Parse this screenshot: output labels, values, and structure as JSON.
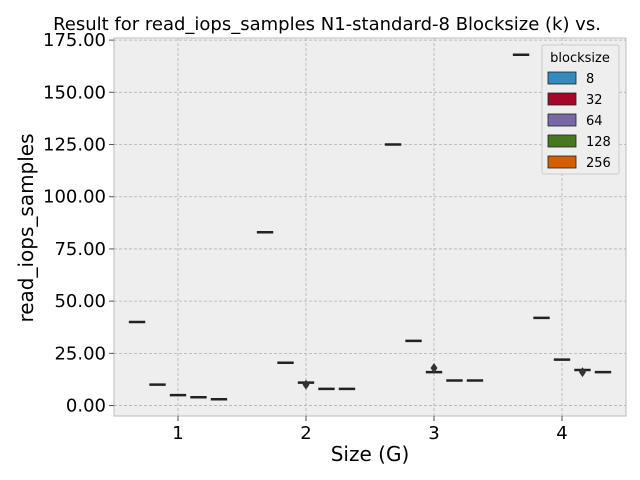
{
  "chart_data": {
    "type": "box",
    "title": "Result for read_iops_samples N1-standard-8 Blocksize (k) vs.",
    "xlabel": "Size (G)",
    "ylabel": "read_iops_samples",
    "categories": [
      "1",
      "2",
      "3",
      "4"
    ],
    "ylim": [
      -5,
      176
    ],
    "yticks": [
      "0.00",
      "25.00",
      "50.00",
      "75.00",
      "100.00",
      "125.00",
      "150.00",
      "175.00"
    ],
    "ytick_values": [
      0,
      25,
      50,
      75,
      100,
      125,
      150,
      175
    ],
    "grid": true,
    "legend": {
      "title": "blocksize",
      "placement": "top-right"
    },
    "series": [
      {
        "name": "8",
        "color": "#348ABD",
        "values": [
          40,
          83,
          125,
          168
        ],
        "outliers": [
          [],
          [],
          [],
          []
        ]
      },
      {
        "name": "32",
        "color": "#A60628",
        "values": [
          10,
          20.5,
          31,
          42
        ],
        "outliers": [
          [],
          [],
          [],
          []
        ]
      },
      {
        "name": "64",
        "color": "#7A68A6",
        "values": [
          5,
          11,
          16,
          22
        ],
        "outliers": [
          [],
          [
            10
          ],
          [
            18
          ],
          []
        ]
      },
      {
        "name": "128",
        "color": "#467821",
        "values": [
          4,
          8,
          12,
          17
        ],
        "outliers": [
          [],
          [],
          [],
          [
            16
          ]
        ]
      },
      {
        "name": "256",
        "color": "#D55E00",
        "values": [
          3,
          8,
          12,
          16
        ],
        "outliers": [
          [],
          [],
          [],
          []
        ]
      }
    ]
  }
}
